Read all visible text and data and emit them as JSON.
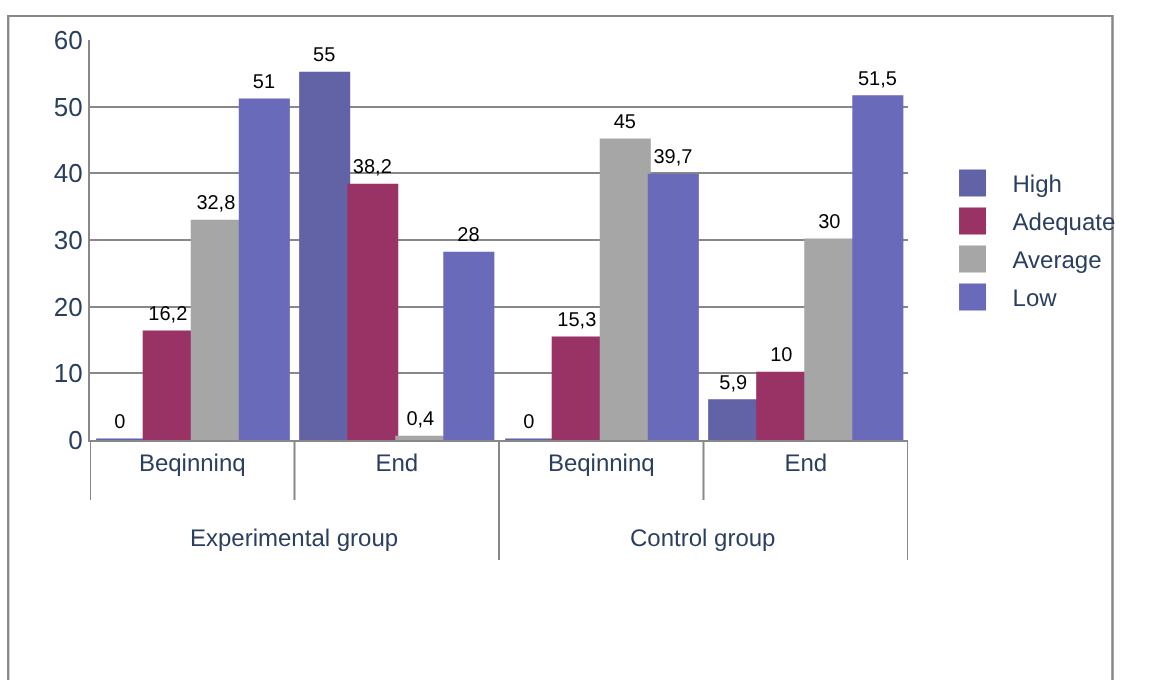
{
  "chart_data": {
    "type": "bar",
    "categories": [
      "Beqinninq",
      "End",
      "Beqinninq",
      "End"
    ],
    "series": [
      {
        "name": "High",
        "color": "#6262a6",
        "values": [
          0,
          55,
          0,
          5.9
        ],
        "value_labels": [
          "0",
          "55",
          "0",
          "5,9"
        ]
      },
      {
        "name": "Adequate",
        "color": "#993366",
        "values": [
          16.2,
          38.2,
          15.3,
          10
        ],
        "value_labels": [
          "16,2",
          "38,2",
          "15,3",
          "10"
        ]
      },
      {
        "name": "Average",
        "color": "#a6a6a6",
        "values": [
          32.8,
          0.4,
          45,
          30
        ],
        "value_labels": [
          "32,8",
          "0,4",
          "45",
          "30"
        ]
      },
      {
        "name": "Low",
        "color": "#6a6abb",
        "values": [
          51,
          28,
          39.7,
          51.5
        ],
        "value_labels": [
          "51",
          "28",
          "39,7",
          "51,5"
        ]
      }
    ],
    "annotations": [
      "Experimental group",
      "Control group"
    ],
    "ylim": [
      0,
      60
    ],
    "yticks": [
      0,
      10,
      20,
      30,
      40,
      50,
      60
    ],
    "grid": "y",
    "legend": "right"
  }
}
